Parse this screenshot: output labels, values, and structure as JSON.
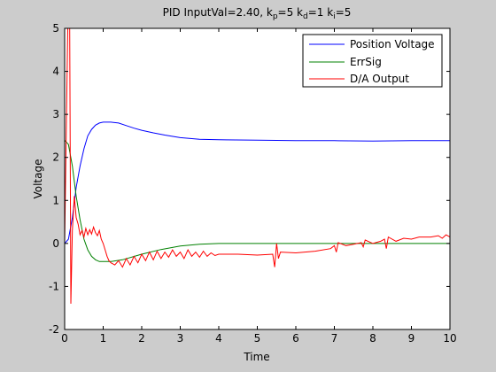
{
  "chart_data": {
    "type": "line",
    "title": {
      "prefix": "PID InputVal=2.40, k",
      "p_sub": "p",
      "p_val": "=5 k",
      "d_sub": "d",
      "d_val": "=1 k",
      "i_sub": "i",
      "i_val": "=5"
    },
    "xlabel": "Time",
    "ylabel": "Voltage",
    "xlim": [
      0,
      10
    ],
    "ylim": [
      -2,
      5
    ],
    "xticks": [
      "0",
      "1",
      "2",
      "3",
      "4",
      "5",
      "6",
      "7",
      "8",
      "9",
      "10"
    ],
    "yticks": [
      "-2",
      "-1",
      "0",
      "1",
      "2",
      "3",
      "4",
      "5"
    ],
    "grid": false,
    "legend_position": "top-right",
    "series": [
      {
        "name": "Position Voltage",
        "color": "#0000ff",
        "points": [
          [
            0,
            0
          ],
          [
            0.1,
            0.1
          ],
          [
            0.2,
            0.6
          ],
          [
            0.3,
            1.3
          ],
          [
            0.4,
            1.8
          ],
          [
            0.5,
            2.2
          ],
          [
            0.6,
            2.5
          ],
          [
            0.7,
            2.65
          ],
          [
            0.8,
            2.75
          ],
          [
            0.9,
            2.8
          ],
          [
            1.0,
            2.82
          ],
          [
            1.2,
            2.82
          ],
          [
            1.4,
            2.8
          ],
          [
            1.6,
            2.74
          ],
          [
            1.8,
            2.68
          ],
          [
            2.0,
            2.63
          ],
          [
            2.3,
            2.57
          ],
          [
            2.6,
            2.52
          ],
          [
            3.0,
            2.46
          ],
          [
            3.5,
            2.42
          ],
          [
            4.0,
            2.41
          ],
          [
            5.0,
            2.4
          ],
          [
            6.0,
            2.39
          ],
          [
            7.0,
            2.39
          ],
          [
            8.0,
            2.38
          ],
          [
            9.0,
            2.39
          ],
          [
            10.0,
            2.39
          ]
        ]
      },
      {
        "name": "ErrSig",
        "color": "#008000",
        "points": [
          [
            0,
            2.4
          ],
          [
            0.1,
            2.3
          ],
          [
            0.2,
            1.8
          ],
          [
            0.3,
            1.1
          ],
          [
            0.4,
            0.55
          ],
          [
            0.5,
            0.1
          ],
          [
            0.6,
            -0.15
          ],
          [
            0.7,
            -0.3
          ],
          [
            0.8,
            -0.38
          ],
          [
            0.9,
            -0.42
          ],
          [
            1.0,
            -0.42
          ],
          [
            1.2,
            -0.42
          ],
          [
            1.5,
            -0.38
          ],
          [
            2.0,
            -0.25
          ],
          [
            2.5,
            -0.14
          ],
          [
            3.0,
            -0.06
          ],
          [
            3.5,
            -0.02
          ],
          [
            4.0,
            0.0
          ],
          [
            6.0,
            0.0
          ],
          [
            8.0,
            0.0
          ],
          [
            10.0,
            0.0
          ]
        ]
      },
      {
        "name": "D/A Output",
        "color": "#ff0000",
        "points": [
          [
            0,
            0
          ],
          [
            0.08,
            5.0
          ],
          [
            0.13,
            5.0
          ],
          [
            0.16,
            -1.4
          ],
          [
            0.2,
            0.3
          ],
          [
            0.25,
            1.1
          ],
          [
            0.3,
            0.6
          ],
          [
            0.35,
            0.45
          ],
          [
            0.4,
            0.2
          ],
          [
            0.45,
            0.3
          ],
          [
            0.5,
            0.15
          ],
          [
            0.55,
            0.35
          ],
          [
            0.6,
            0.2
          ],
          [
            0.65,
            0.32
          ],
          [
            0.7,
            0.22
          ],
          [
            0.75,
            0.38
          ],
          [
            0.8,
            0.25
          ],
          [
            0.85,
            0.18
          ],
          [
            0.9,
            0.3
          ],
          [
            0.95,
            0.1
          ],
          [
            1.0,
            0.0
          ],
          [
            1.05,
            -0.15
          ],
          [
            1.1,
            -0.3
          ],
          [
            1.15,
            -0.4
          ],
          [
            1.2,
            -0.45
          ],
          [
            1.3,
            -0.5
          ],
          [
            1.4,
            -0.4
          ],
          [
            1.5,
            -0.55
          ],
          [
            1.6,
            -0.35
          ],
          [
            1.7,
            -0.5
          ],
          [
            1.8,
            -0.3
          ],
          [
            1.9,
            -0.45
          ],
          [
            2.0,
            -0.25
          ],
          [
            2.1,
            -0.4
          ],
          [
            2.2,
            -0.2
          ],
          [
            2.3,
            -0.38
          ],
          [
            2.4,
            -0.18
          ],
          [
            2.5,
            -0.35
          ],
          [
            2.6,
            -0.2
          ],
          [
            2.7,
            -0.32
          ],
          [
            2.8,
            -0.15
          ],
          [
            2.9,
            -0.3
          ],
          [
            3.0,
            -0.2
          ],
          [
            3.1,
            -0.35
          ],
          [
            3.2,
            -0.15
          ],
          [
            3.3,
            -0.3
          ],
          [
            3.4,
            -0.2
          ],
          [
            3.5,
            -0.32
          ],
          [
            3.6,
            -0.18
          ],
          [
            3.7,
            -0.3
          ],
          [
            3.8,
            -0.22
          ],
          [
            3.9,
            -0.28
          ],
          [
            4.0,
            -0.25
          ],
          [
            4.5,
            -0.25
          ],
          [
            5.0,
            -0.27
          ],
          [
            5.4,
            -0.25
          ],
          [
            5.45,
            -0.55
          ],
          [
            5.5,
            0.0
          ],
          [
            5.55,
            -0.35
          ],
          [
            5.6,
            -0.2
          ],
          [
            6.0,
            -0.22
          ],
          [
            6.5,
            -0.18
          ],
          [
            6.9,
            -0.12
          ],
          [
            7.0,
            -0.05
          ],
          [
            7.05,
            -0.2
          ],
          [
            7.1,
            0.02
          ],
          [
            7.3,
            -0.05
          ],
          [
            7.5,
            -0.02
          ],
          [
            7.7,
            0.02
          ],
          [
            7.75,
            -0.08
          ],
          [
            7.8,
            0.08
          ],
          [
            8.0,
            0.0
          ],
          [
            8.2,
            0.05
          ],
          [
            8.3,
            0.1
          ],
          [
            8.35,
            -0.12
          ],
          [
            8.4,
            0.15
          ],
          [
            8.6,
            0.05
          ],
          [
            8.8,
            0.12
          ],
          [
            9.0,
            0.1
          ],
          [
            9.2,
            0.15
          ],
          [
            9.5,
            0.15
          ],
          [
            9.7,
            0.18
          ],
          [
            9.8,
            0.12
          ],
          [
            9.9,
            0.2
          ],
          [
            10.0,
            0.15
          ]
        ]
      }
    ]
  }
}
